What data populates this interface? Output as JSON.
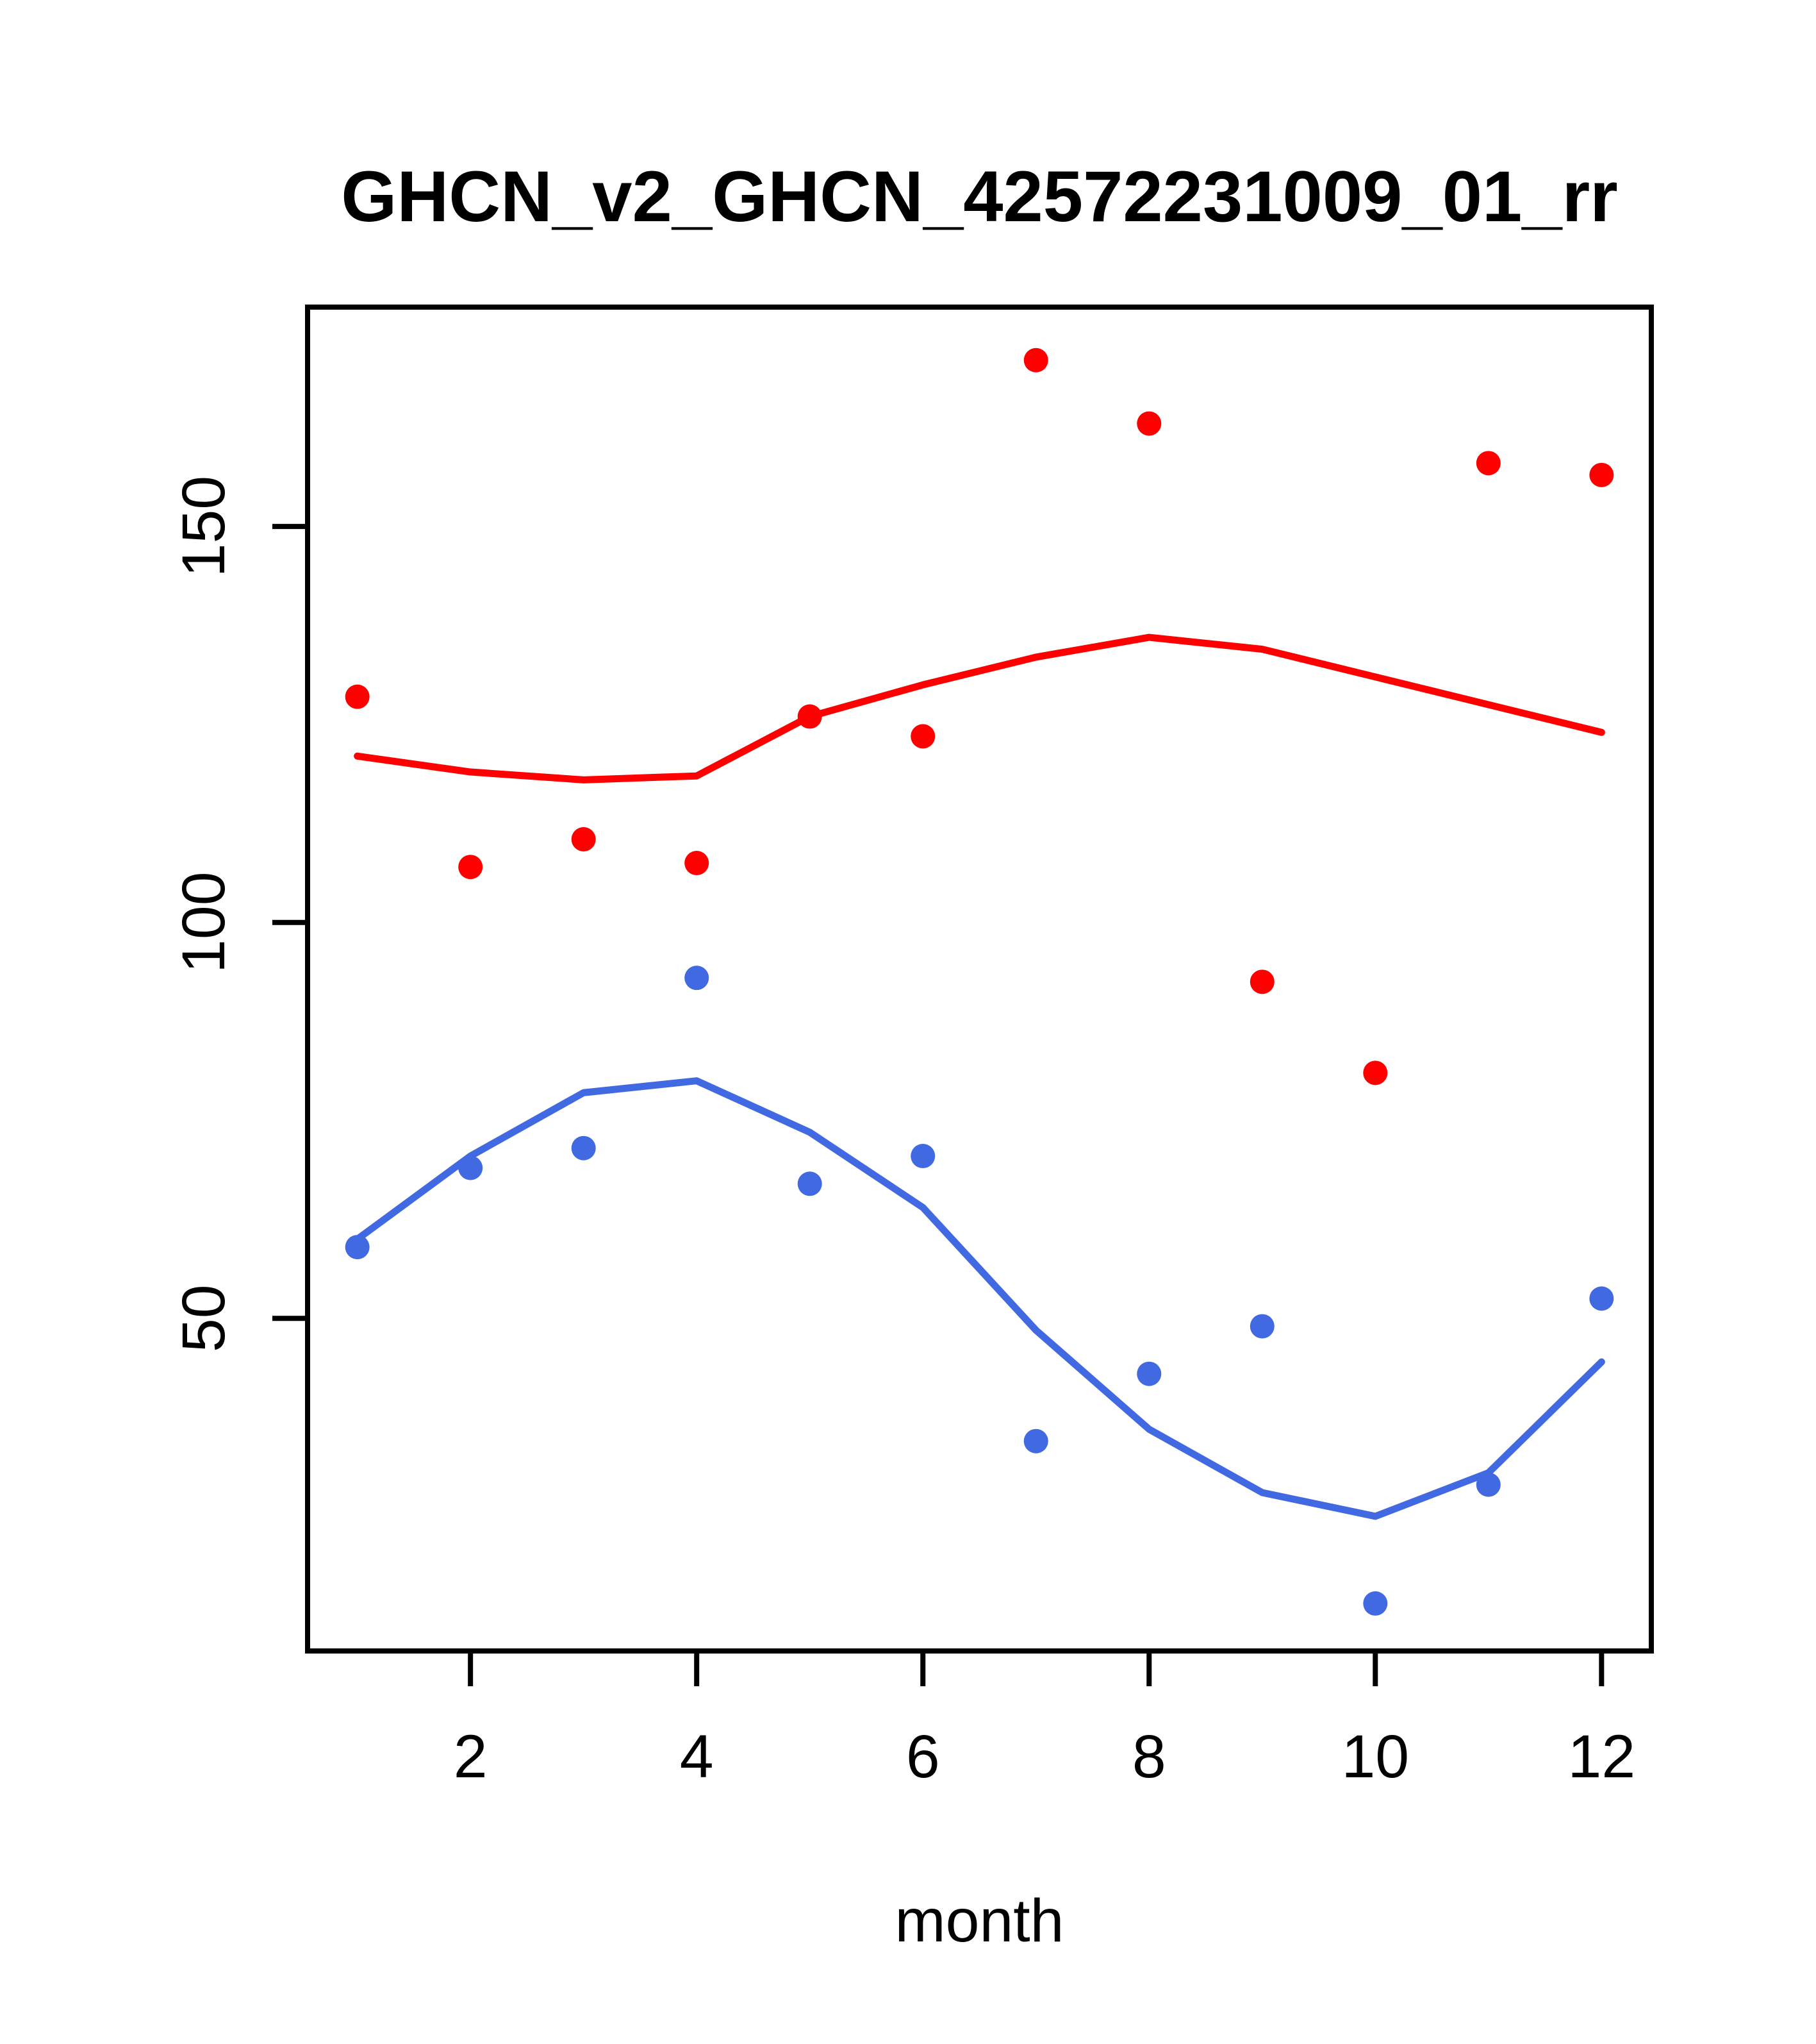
{
  "figure": {
    "background": "#FFFFFF",
    "foreground": "#000000"
  },
  "chart_data": {
    "type": "scatter",
    "title": "GHCN_v2_GHCN_42572231009_01_rr",
    "xlabel": "month",
    "ylabel": "",
    "grid": false,
    "legend": "none",
    "xlim": [
      0.56,
      12.44
    ],
    "ylim": [
      8,
      177.7
    ],
    "x_ticks": [
      2,
      4,
      6,
      8,
      10,
      12
    ],
    "y_ticks": [
      50,
      100,
      150
    ],
    "months": [
      1,
      2,
      3,
      4,
      5,
      6,
      7,
      8,
      9,
      10,
      11,
      12
    ],
    "series": [
      {
        "name": "red-observations",
        "kind": "points",
        "color": "#FF0000",
        "values": [
          128.5,
          107,
          110.5,
          107.5,
          126,
          123.5,
          171,
          163,
          92.5,
          81,
          158,
          156.5
        ]
      },
      {
        "name": "red-smooth",
        "kind": "line",
        "color": "#FF0000",
        "values": [
          121,
          119,
          118,
          118.5,
          126,
          130,
          133.5,
          136,
          134.5,
          131,
          127.5,
          124
        ]
      },
      {
        "name": "blue-observations",
        "kind": "points",
        "color": "#4169E1",
        "values": [
          59,
          69,
          71.5,
          93,
          67,
          70.5,
          34.5,
          43,
          49,
          14,
          29,
          52.5
        ]
      },
      {
        "name": "blue-smooth",
        "kind": "line",
        "color": "#4169E1",
        "values": [
          60,
          70.5,
          78.5,
          80,
          73.5,
          64,
          48.5,
          36,
          28,
          25,
          30.5,
          44.5
        ]
      }
    ]
  }
}
